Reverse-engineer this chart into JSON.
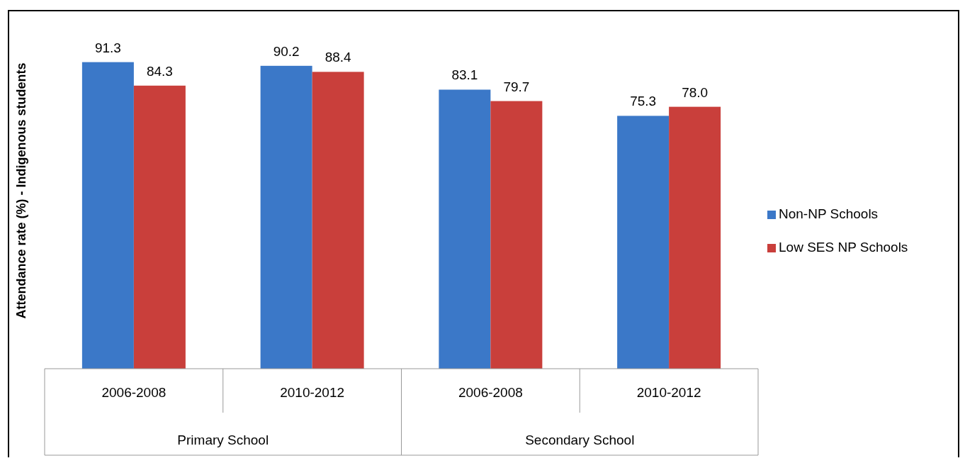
{
  "chart_data": {
    "type": "bar",
    "ylabel": "Attendance rate (%) - Indigenous students",
    "categories": [
      "2006-2008",
      "2010-2012",
      "2006-2008",
      "2010-2012"
    ],
    "series": [
      {
        "name": "Non-NP Schools",
        "color": "#3b78c8",
        "values": [
          91.3,
          90.2,
          83.1,
          75.3
        ],
        "value_labels": [
          "91.3",
          "90.2",
          "83.1",
          "75.3"
        ]
      },
      {
        "name": "Low SES NP Schools",
        "color": "#c93f3b",
        "values": [
          84.3,
          88.4,
          79.7,
          78.0
        ],
        "value_labels": [
          "84.3",
          "88.4",
          "79.7",
          "78.0"
        ]
      }
    ],
    "annotations": [
      "Primary School",
      "Secondary School"
    ],
    "ylim": [
      0,
      106
    ],
    "tick_labels": "x",
    "legend": "right"
  }
}
